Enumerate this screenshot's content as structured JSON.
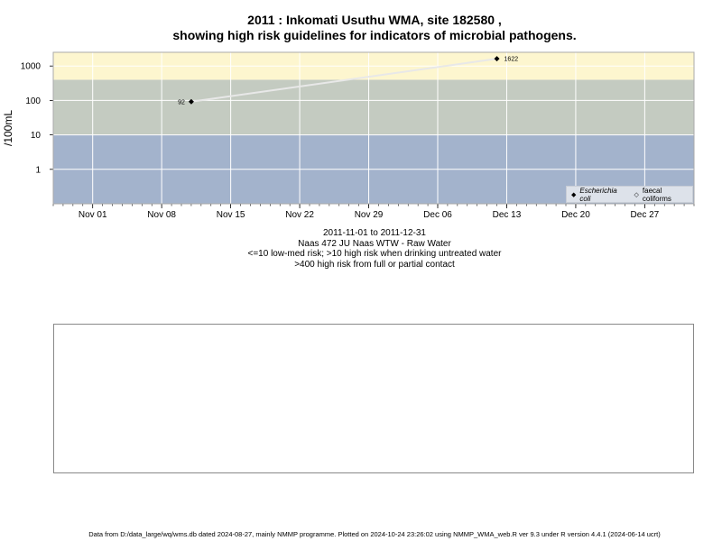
{
  "header": {
    "title_line1": "2011 : Inkomati Usuthu WMA, site 182580 ,",
    "title_line2": "showing high risk guidelines for indicators of microbial pathogens."
  },
  "subtitle": {
    "date_range": "2011-11-01 to 2011-12-31",
    "site_name": "Naas 472 JU Naas WTW - Raw Water",
    "guideline_1": "<=10 low-med risk; >10 high risk when drinking untreated water",
    "guideline_2": ">400 high risk from full or partial contact"
  },
  "legend": {
    "item1": "Escherichia coli",
    "item2": "faecal coliforms"
  },
  "footer": {
    "text": "Data from D:/data_large/wq/wms.db dated 2024-08-27, mainly NMMP programme. Plotted on 2024-10-24 23:26:02 using NMMP_WMA_web.R ver 9.3 under R version 4.4.1 (2024-06-14 ucrt)"
  },
  "chart_data": {
    "type": "line",
    "scale_y": "log10",
    "ylabel": "/100mL",
    "xlabel": "",
    "xlim": [
      "2011-10-28",
      "2012-01-01"
    ],
    "ylim": [
      0.1,
      2500
    ],
    "y_ticks": [
      1,
      10,
      100,
      1000
    ],
    "y_tick_labels": [
      "1",
      "10",
      "100",
      "1000"
    ],
    "x_ticks": [
      "2011-11-01",
      "2011-11-08",
      "2011-11-15",
      "2011-11-22",
      "2011-11-29",
      "2011-12-06",
      "2011-12-13",
      "2011-12-20",
      "2011-12-27"
    ],
    "x_tick_labels": [
      "Nov 01",
      "Nov 08",
      "Nov 15",
      "Nov 22",
      "Nov 29",
      "Dec 06",
      "Dec 13",
      "Dec 20",
      "Dec 27"
    ],
    "grid": true,
    "risk_bands": [
      {
        "from": 0.1,
        "to": 10,
        "color": "#a3b3cc"
      },
      {
        "from": 10,
        "to": 400,
        "color": "#c4cbc1"
      },
      {
        "from": 400,
        "to": 2500,
        "color": "#fdf6cf"
      }
    ],
    "series": [
      {
        "name": "Escherichia coli",
        "marker": "filled-diamond",
        "color": "#000000",
        "line_color": "#e8e8e8",
        "points": [
          {
            "x": "2011-11-11",
            "y": 92,
            "label": "92"
          },
          {
            "x": "2011-12-12",
            "y": 1622,
            "label": "1622"
          }
        ]
      }
    ],
    "legend_position": "bottom-right"
  }
}
